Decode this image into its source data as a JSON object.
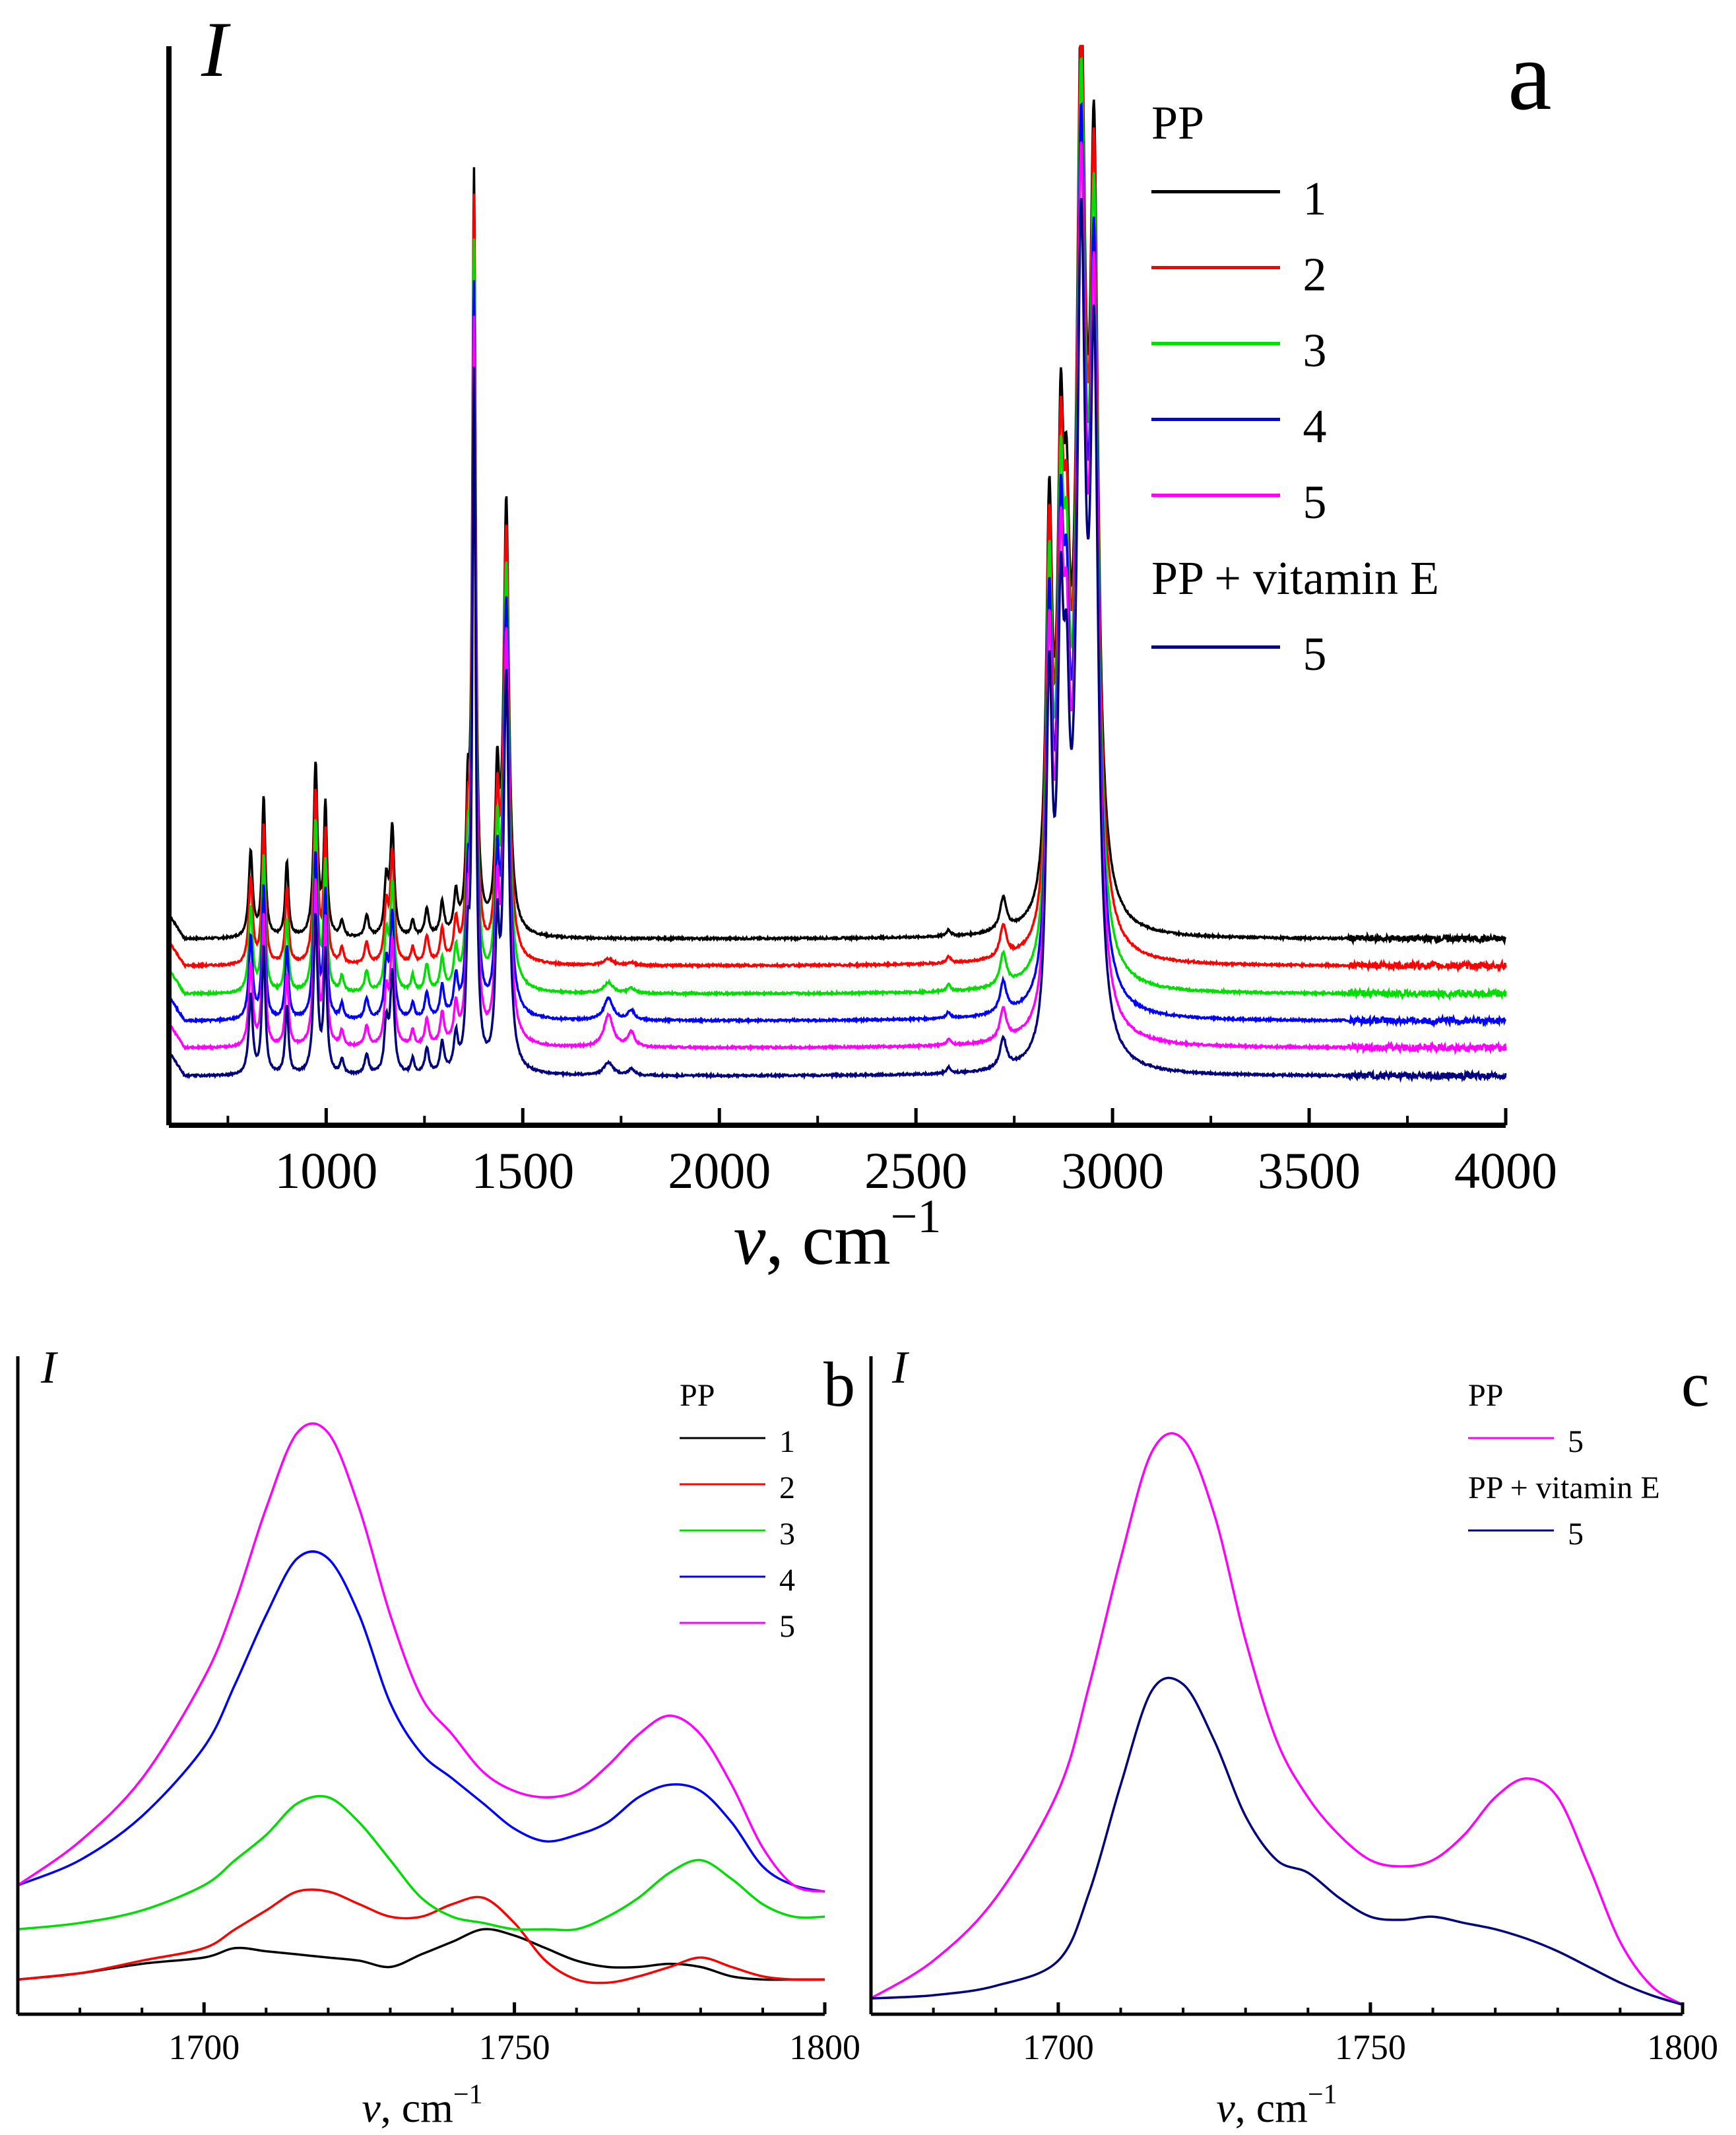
{
  "chart_data": [
    {
      "panel": "a",
      "type": "line",
      "xlabel_symbol": "ν",
      "xlabel_unit": ", cm",
      "xlabel_exp": "−1",
      "ylabel": "I",
      "xlim": [
        600,
        4000
      ],
      "x_ticks": [
        1000,
        1500,
        2000,
        2500,
        3000,
        3500,
        4000
      ],
      "y_ticks_shown": false,
      "legend": {
        "groups": [
          {
            "title": "PP",
            "entries": [
              {
                "label": "1",
                "color": "#000000"
              },
              {
                "label": "2",
                "color": "#ff0000"
              },
              {
                "label": "3",
                "color": "#00dd00"
              },
              {
                "label": "4",
                "color": "#0000ff"
              },
              {
                "label": "5",
                "color": "#ff00ff"
              }
            ]
          },
          {
            "title": "PP + vitamin E",
            "entries": [
              {
                "label": "5",
                "color": "#000080"
              }
            ]
          }
        ]
      },
      "series": [
        {
          "name": "PP 1",
          "color": "#000000",
          "baseline": 0.145,
          "scale": 1.0,
          "carbonyl": 0.0
        },
        {
          "name": "PP 2",
          "color": "#ff0000",
          "baseline": 0.12,
          "scale": 1.0,
          "carbonyl": 0.006
        },
        {
          "name": "PP 3",
          "color": "#00dd00",
          "baseline": 0.094,
          "scale": 0.98,
          "carbonyl": 0.01
        },
        {
          "name": "PP 4",
          "color": "#0000ff",
          "baseline": 0.069,
          "scale": 0.96,
          "carbonyl": 0.02
        },
        {
          "name": "PP 5",
          "color": "#ff00ff",
          "baseline": 0.044,
          "scale": 0.95,
          "carbonyl": 0.03
        },
        {
          "name": "PP + vitamin E 5",
          "color": "#000080",
          "baseline": 0.018,
          "scale": 0.92,
          "carbonyl": 0.012
        }
      ],
      "peaks": [
        {
          "x": 808,
          "h": 0.08,
          "w": 6
        },
        {
          "x": 841,
          "h": 0.13,
          "w": 5
        },
        {
          "x": 900,
          "h": 0.07,
          "w": 5
        },
        {
          "x": 973,
          "h": 0.16,
          "w": 6
        },
        {
          "x": 998,
          "h": 0.12,
          "w": 5
        },
        {
          "x": 1040,
          "h": 0.015,
          "w": 5
        },
        {
          "x": 1103,
          "h": 0.02,
          "w": 6
        },
        {
          "x": 1153,
          "h": 0.05,
          "w": 6
        },
        {
          "x": 1168,
          "h": 0.1,
          "w": 6
        },
        {
          "x": 1220,
          "h": 0.015,
          "w": 5
        },
        {
          "x": 1256,
          "h": 0.025,
          "w": 6
        },
        {
          "x": 1295,
          "h": 0.03,
          "w": 6
        },
        {
          "x": 1330,
          "h": 0.035,
          "w": 6
        },
        {
          "x": 1360,
          "h": 0.1,
          "w": 5
        },
        {
          "x": 1376,
          "h": 0.7,
          "w": 5
        },
        {
          "x": 1435,
          "h": 0.13,
          "w": 6
        },
        {
          "x": 1458,
          "h": 0.4,
          "w": 8
        },
        {
          "x": 2583,
          "h": 0.006,
          "w": 6
        },
        {
          "x": 2722,
          "h": 0.03,
          "w": 10
        },
        {
          "x": 2839,
          "h": 0.36,
          "w": 9
        },
        {
          "x": 2868,
          "h": 0.37,
          "w": 9
        },
        {
          "x": 2883,
          "h": 0.25,
          "w": 9
        },
        {
          "x": 2920,
          "h": 0.78,
          "w": 13
        },
        {
          "x": 2953,
          "h": 0.66,
          "w": 12
        }
      ]
    },
    {
      "panel": "b",
      "type": "line",
      "xlabel_symbol": "ν",
      "xlabel_unit": ", cm",
      "xlabel_exp": "−1",
      "ylabel": "I",
      "xlim": [
        1670,
        1800
      ],
      "x_ticks": [
        1700,
        1750,
        1800
      ],
      "legend": {
        "groups": [
          {
            "title": "PP",
            "entries": [
              {
                "label": "1",
                "color": "#000000"
              },
              {
                "label": "2",
                "color": "#ff0000"
              },
              {
                "label": "3",
                "color": "#00dd00"
              },
              {
                "label": "4",
                "color": "#0000ff"
              },
              {
                "label": "5",
                "color": "#ff00ff"
              }
            ]
          }
        ]
      },
      "series": [
        {
          "name": "1",
          "color": "#000000",
          "x": [
            1670,
            1680,
            1690,
            1700,
            1705,
            1710,
            1715,
            1720,
            1725,
            1730,
            1735,
            1740,
            1745,
            1750,
            1755,
            1760,
            1765,
            1770,
            1775,
            1780,
            1785,
            1790,
            1795,
            1800
          ],
          "y": [
            0.05,
            0.06,
            0.075,
            0.085,
            0.1,
            0.095,
            0.09,
            0.085,
            0.08,
            0.07,
            0.09,
            0.11,
            0.13,
            0.12,
            0.1,
            0.08,
            0.07,
            0.07,
            0.075,
            0.07,
            0.055,
            0.05,
            0.05,
            0.05
          ]
        },
        {
          "name": "2",
          "color": "#ff0000",
          "x": [
            1670,
            1680,
            1690,
            1700,
            1705,
            1710,
            1715,
            1720,
            1725,
            1730,
            1735,
            1740,
            1745,
            1750,
            1755,
            1760,
            1765,
            1770,
            1775,
            1780,
            1785,
            1790,
            1795,
            1800
          ],
          "y": [
            0.05,
            0.06,
            0.08,
            0.1,
            0.13,
            0.16,
            0.19,
            0.19,
            0.17,
            0.15,
            0.15,
            0.17,
            0.18,
            0.14,
            0.08,
            0.05,
            0.045,
            0.055,
            0.07,
            0.085,
            0.07,
            0.055,
            0.05,
            0.05
          ]
        },
        {
          "name": "3",
          "color": "#00dd00",
          "x": [
            1670,
            1680,
            1690,
            1700,
            1705,
            1710,
            1715,
            1720,
            1725,
            1730,
            1735,
            1740,
            1745,
            1750,
            1755,
            1760,
            1765,
            1770,
            1775,
            1780,
            1785,
            1790,
            1795,
            1800
          ],
          "y": [
            0.13,
            0.14,
            0.16,
            0.2,
            0.24,
            0.28,
            0.33,
            0.34,
            0.3,
            0.24,
            0.18,
            0.15,
            0.14,
            0.13,
            0.13,
            0.13,
            0.15,
            0.18,
            0.22,
            0.24,
            0.21,
            0.17,
            0.15,
            0.15
          ]
        },
        {
          "name": "4",
          "color": "#0000ff",
          "x": [
            1670,
            1680,
            1690,
            1700,
            1705,
            1710,
            1715,
            1720,
            1725,
            1730,
            1735,
            1740,
            1745,
            1750,
            1755,
            1760,
            1765,
            1770,
            1775,
            1780,
            1785,
            1790,
            1795,
            1800
          ],
          "y": [
            0.2,
            0.24,
            0.31,
            0.42,
            0.52,
            0.63,
            0.72,
            0.72,
            0.63,
            0.49,
            0.41,
            0.37,
            0.33,
            0.29,
            0.27,
            0.28,
            0.3,
            0.34,
            0.36,
            0.35,
            0.3,
            0.23,
            0.2,
            0.19
          ]
        },
        {
          "name": "5",
          "color": "#ff00ff",
          "x": [
            1670,
            1680,
            1690,
            1700,
            1705,
            1710,
            1715,
            1720,
            1725,
            1730,
            1735,
            1740,
            1745,
            1750,
            1755,
            1760,
            1765,
            1770,
            1775,
            1780,
            1785,
            1790,
            1795,
            1800
          ],
          "y": [
            0.2,
            0.27,
            0.37,
            0.53,
            0.65,
            0.8,
            0.92,
            0.92,
            0.8,
            0.63,
            0.5,
            0.44,
            0.38,
            0.35,
            0.34,
            0.35,
            0.39,
            0.44,
            0.47,
            0.44,
            0.36,
            0.26,
            0.2,
            0.19
          ]
        }
      ]
    },
    {
      "panel": "c",
      "type": "line",
      "xlabel_symbol": "ν",
      "xlabel_unit": ", cm",
      "xlabel_exp": "−1",
      "ylabel": "I",
      "xlim": [
        1670,
        1800
      ],
      "x_ticks": [
        1700,
        1750,
        1800
      ],
      "legend": {
        "groups": [
          {
            "title": "PP",
            "entries": [
              {
                "label": "5",
                "color": "#ff00ff"
              }
            ]
          },
          {
            "title": "PP + vitamin E",
            "entries": [
              {
                "label": "5",
                "color": "#000080"
              }
            ]
          }
        ]
      },
      "series": [
        {
          "name": "PP 5",
          "color": "#ff00ff",
          "x": [
            1670,
            1680,
            1690,
            1700,
            1705,
            1710,
            1715,
            1720,
            1725,
            1730,
            1735,
            1740,
            1745,
            1750,
            1755,
            1760,
            1765,
            1770,
            1775,
            1780,
            1785,
            1790,
            1795,
            1800
          ],
          "y": [
            0.02,
            0.08,
            0.18,
            0.35,
            0.52,
            0.72,
            0.89,
            0.91,
            0.79,
            0.59,
            0.43,
            0.34,
            0.28,
            0.24,
            0.23,
            0.24,
            0.28,
            0.34,
            0.37,
            0.34,
            0.23,
            0.11,
            0.04,
            0.01
          ]
        },
        {
          "name": "PP + vitamin E 5",
          "color": "#000080",
          "x": [
            1670,
            1680,
            1690,
            1700,
            1705,
            1710,
            1715,
            1720,
            1725,
            1730,
            1735,
            1740,
            1745,
            1750,
            1755,
            1760,
            1765,
            1770,
            1775,
            1780,
            1785,
            1790,
            1795,
            1800
          ],
          "y": [
            0.02,
            0.025,
            0.04,
            0.08,
            0.19,
            0.36,
            0.51,
            0.52,
            0.43,
            0.31,
            0.24,
            0.22,
            0.18,
            0.15,
            0.145,
            0.15,
            0.14,
            0.13,
            0.115,
            0.095,
            0.07,
            0.045,
            0.025,
            0.01
          ]
        }
      ]
    }
  ],
  "panel_labels": {
    "a": "a",
    "b": "b",
    "c": "c"
  }
}
